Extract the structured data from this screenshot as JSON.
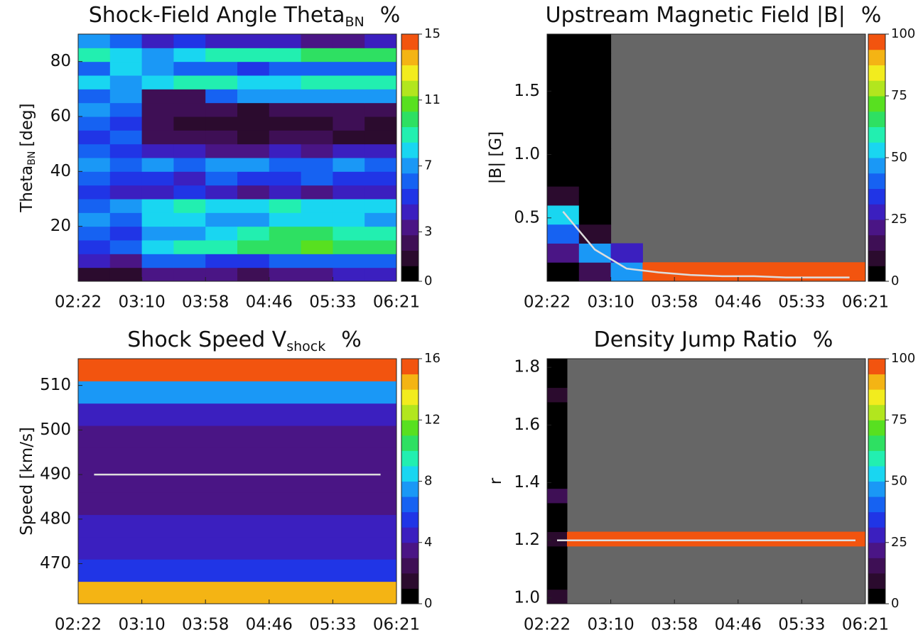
{
  "chart_data": [
    {
      "type": "heatmap",
      "title": "Shock-Field Angle Theta",
      "title_subscript": "BN",
      "title_unit": "%",
      "ylabel": "Theta",
      "ylabel_subscript": "BN",
      "ylabel_unit": "[deg]",
      "xticks": [
        "02:22",
        "03:10",
        "03:58",
        "04:46",
        "05:33",
        "06:21"
      ],
      "ylim": [
        0,
        90
      ],
      "yticks": [
        20,
        40,
        60,
        80
      ],
      "clim": [
        0,
        15
      ],
      "cticks": [
        0,
        3,
        7,
        11,
        15
      ],
      "z": [
        [
          1,
          1,
          3,
          3,
          3,
          2,
          3,
          3,
          4,
          4
        ],
        [
          4,
          3,
          6,
          6,
          5,
          5,
          6,
          6,
          6,
          6
        ],
        [
          5,
          6,
          8,
          9,
          9,
          10,
          10,
          11,
          10,
          10
        ],
        [
          6,
          5,
          7,
          7,
          8,
          9,
          10,
          10,
          9,
          9
        ],
        [
          7,
          6,
          8,
          8,
          7,
          7,
          8,
          8,
          8,
          7
        ],
        [
          6,
          7,
          8,
          9,
          8,
          8,
          9,
          8,
          8,
          8
        ],
        [
          5,
          4,
          4,
          5,
          4,
          3,
          4,
          3,
          4,
          4
        ],
        [
          6,
          5,
          5,
          4,
          6,
          5,
          5,
          6,
          5,
          5
        ],
        [
          7,
          6,
          7,
          6,
          7,
          7,
          6,
          6,
          7,
          6
        ],
        [
          6,
          5,
          4,
          4,
          3,
          3,
          4,
          3,
          4,
          4
        ],
        [
          5,
          6,
          2,
          2,
          2,
          1,
          2,
          2,
          1,
          1
        ],
        [
          6,
          5,
          2,
          1,
          1,
          1,
          1,
          1,
          2,
          1
        ],
        [
          7,
          6,
          2,
          2,
          2,
          1,
          2,
          2,
          2,
          2
        ],
        [
          6,
          7,
          2,
          2,
          6,
          7,
          7,
          7,
          7,
          7
        ],
        [
          8,
          7,
          8,
          9,
          9,
          8,
          8,
          9,
          9,
          9
        ],
        [
          6,
          8,
          7,
          6,
          6,
          5,
          6,
          6,
          6,
          6
        ],
        [
          9,
          8,
          7,
          8,
          9,
          9,
          9,
          10,
          10,
          10
        ],
        [
          7,
          6,
          4,
          5,
          4,
          4,
          4,
          3,
          3,
          4
        ]
      ]
    },
    {
      "type": "heatmap",
      "title": "Upstream Magnetic Field |B|",
      "title_unit": "%",
      "ylabel": "|B| [G]",
      "xticks": [
        "02:22",
        "03:10",
        "03:58",
        "04:46",
        "05:33",
        "06:21"
      ],
      "ylim": [
        0,
        1.95
      ],
      "yticks": [
        0.5,
        {
          "value": 1,
          "label": "1.0"
        },
        1.5
      ],
      "clim": [
        0,
        100
      ],
      "cticks": [
        0,
        25,
        50,
        75,
        100
      ],
      "missing_color": "#666666",
      "z": [
        [
          2,
          15,
          45,
          100,
          100,
          100,
          100,
          100,
          100,
          100
        ],
        [
          20,
          45,
          30,
          null,
          null,
          null,
          null,
          null,
          null,
          null
        ],
        [
          40,
          10,
          null,
          null,
          null,
          null,
          null,
          null,
          null,
          null
        ],
        [
          50,
          5,
          null,
          null,
          null,
          null,
          null,
          null,
          null,
          null
        ],
        [
          10,
          4,
          null,
          null,
          null,
          null,
          null,
          null,
          null,
          null
        ],
        [
          6,
          3,
          null,
          null,
          null,
          null,
          null,
          null,
          null,
          null
        ],
        [
          5,
          3,
          null,
          null,
          null,
          null,
          null,
          null,
          null,
          null
        ],
        [
          4,
          2,
          null,
          null,
          null,
          null,
          null,
          null,
          null,
          null
        ],
        [
          3,
          2,
          null,
          null,
          null,
          null,
          null,
          null,
          null,
          null
        ],
        [
          2,
          2,
          null,
          null,
          null,
          null,
          null,
          null,
          null,
          null
        ],
        [
          2,
          1,
          null,
          null,
          null,
          null,
          null,
          null,
          null,
          null
        ],
        [
          1,
          1,
          null,
          null,
          null,
          null,
          null,
          null,
          null,
          null
        ],
        [
          1,
          1,
          null,
          null,
          null,
          null,
          null,
          null,
          null,
          null
        ]
      ],
      "line": {
        "color": "#dddddd",
        "values": [
          0.55,
          0.25,
          0.1,
          0.07,
          0.05,
          0.04,
          0.04,
          0.03,
          0.03,
          0.03
        ]
      }
    },
    {
      "type": "heatmap",
      "title": "Shock Speed V",
      "title_subscript": "shock",
      "title_unit": "%",
      "ylabel": "Speed [km/s]",
      "xticks": [
        "02:22",
        "03:10",
        "03:58",
        "04:46",
        "05:33",
        "06:21"
      ],
      "ylim": [
        461,
        516
      ],
      "yticks": [
        470,
        480,
        490,
        500,
        510
      ],
      "clim": [
        0,
        16
      ],
      "cticks": [
        0,
        4,
        8,
        12,
        16
      ],
      "z": [
        [
          14
        ],
        [
          5
        ],
        [
          4
        ],
        [
          4
        ],
        [
          3
        ],
        [
          3
        ],
        [
          3
        ],
        [
          3
        ],
        [
          4
        ],
        [
          7
        ],
        [
          16
        ]
      ],
      "line": {
        "color": "#dddddd",
        "values": [
          490,
          490,
          490,
          490,
          490,
          490,
          490,
          490,
          490,
          490
        ]
      }
    },
    {
      "type": "heatmap",
      "title": "Density Jump Ratio",
      "title_unit": "%",
      "ylabel": "r",
      "xticks": [
        "02:22",
        "03:10",
        "03:58",
        "04:46",
        "05:33",
        "06:21"
      ],
      "ylim": [
        0.98,
        1.83
      ],
      "yticks": [
        {
          "value": 1,
          "label": "1.0"
        },
        1.2,
        1.4,
        1.6,
        1.8
      ],
      "clim": [
        0,
        100
      ],
      "cticks": [
        0,
        25,
        50,
        75,
        100
      ],
      "missing_color": "#666666",
      "z": [
        [
          10,
          null,
          null,
          null,
          null,
          null,
          null,
          null,
          null,
          null,
          null,
          null,
          null,
          null,
          null,
          null
        ],
        [
          3,
          null,
          null,
          null,
          null,
          null,
          null,
          null,
          null,
          null,
          null,
          null,
          null,
          null,
          null,
          null
        ],
        [
          2,
          null,
          null,
          null,
          null,
          null,
          null,
          null,
          null,
          null,
          null,
          null,
          null,
          null,
          null,
          null
        ],
        [
          4,
          null,
          null,
          null,
          null,
          null,
          null,
          null,
          null,
          null,
          null,
          null,
          null,
          null,
          null,
          null
        ],
        [
          8,
          100,
          100,
          100,
          100,
          100,
          100,
          100,
          100,
          100,
          100,
          100,
          100,
          100,
          100,
          100
        ],
        [
          2,
          null,
          null,
          null,
          null,
          null,
          null,
          null,
          null,
          null,
          null,
          null,
          null,
          null,
          null,
          null
        ],
        [
          2,
          null,
          null,
          null,
          null,
          null,
          null,
          null,
          null,
          null,
          null,
          null,
          null,
          null,
          null,
          null
        ],
        [
          15,
          null,
          null,
          null,
          null,
          null,
          null,
          null,
          null,
          null,
          null,
          null,
          null,
          null,
          null,
          null
        ],
        [
          3,
          null,
          null,
          null,
          null,
          null,
          null,
          null,
          null,
          null,
          null,
          null,
          null,
          null,
          null,
          null
        ],
        [
          2,
          null,
          null,
          null,
          null,
          null,
          null,
          null,
          null,
          null,
          null,
          null,
          null,
          null,
          null,
          null
        ],
        [
          1,
          null,
          null,
          null,
          null,
          null,
          null,
          null,
          null,
          null,
          null,
          null,
          null,
          null,
          null,
          null
        ],
        [
          2,
          null,
          null,
          null,
          null,
          null,
          null,
          null,
          null,
          null,
          null,
          null,
          null,
          null,
          null,
          null
        ],
        [
          1,
          null,
          null,
          null,
          null,
          null,
          null,
          null,
          null,
          null,
          null,
          null,
          null,
          null,
          null,
          null
        ],
        [
          1,
          null,
          null,
          null,
          null,
          null,
          null,
          null,
          null,
          null,
          null,
          null,
          null,
          null,
          null,
          null
        ],
        [
          12,
          null,
          null,
          null,
          null,
          null,
          null,
          null,
          null,
          null,
          null,
          null,
          null,
          null,
          null,
          null
        ],
        [
          2,
          null,
          null,
          null,
          null,
          null,
          null,
          null,
          null,
          null,
          null,
          null,
          null,
          null,
          null,
          null
        ],
        [
          1,
          null,
          null,
          null,
          null,
          null,
          null,
          null,
          null,
          null,
          null,
          null,
          null,
          null,
          null,
          null
        ]
      ],
      "line": {
        "color": "#dddddd",
        "values": [
          1.2,
          1.2,
          1.2,
          1.2,
          1.2,
          1.2,
          1.2,
          1.2,
          1.2,
          1.2,
          1.2,
          1.2,
          1.2,
          1.2,
          1.2,
          1.2
        ]
      }
    }
  ]
}
